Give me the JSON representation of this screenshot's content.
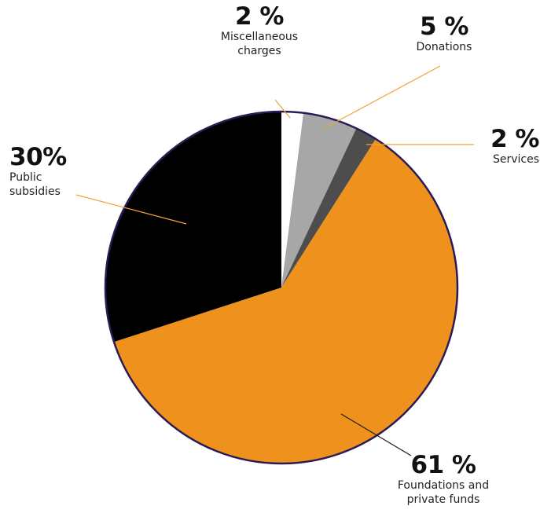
{
  "chart_data": {
    "type": "pie",
    "start_angle_deg": 0,
    "direction": "clockwise",
    "outline_color": "#2a1b57",
    "slices": [
      {
        "label_lines": [
          "Miscellaneous",
          "charges"
        ],
        "pct_text": "2 %",
        "value": 2,
        "color": "#ffffff"
      },
      {
        "label_lines": [
          "Donations"
        ],
        "pct_text": "5 %",
        "value": 5,
        "color": "#a7a7a7"
      },
      {
        "label_lines": [
          "Services"
        ],
        "pct_text": "2 %",
        "value": 2,
        "color": "#4d4d4d"
      },
      {
        "label_lines": [
          "Foundations and",
          "private funds"
        ],
        "pct_text": "61 %",
        "value": 61,
        "color": "#ef921d"
      },
      {
        "label_lines": [
          "Public",
          "subsidies"
        ],
        "pct_text": "30%",
        "value": 30,
        "color": "#000000"
      }
    ]
  }
}
